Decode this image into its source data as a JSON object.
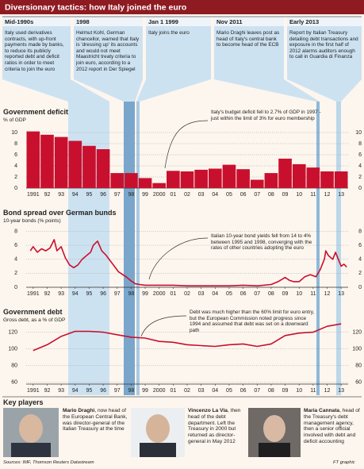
{
  "header": {
    "title": "Diversionary tactics: how Italy joined the euro"
  },
  "timeline": [
    {
      "date": "Mid-1990s",
      "text": "Italy used derivatives contracts, with up-front payments made by banks, to reduce its publicly reported debt and deficit ratios in order to meet criteria to join the euro"
    },
    {
      "date": "1998",
      "text": "Helmut Kohl, German chancellor, warned that Italy is 'dressing up' its accounts and would not meet Maastricht treaty criteria to join euro, according to a 2012 report in Der Spiegel"
    },
    {
      "date": "Jan 1 1999",
      "text": "Italy joins the euro"
    },
    {
      "date": "Nov 2011",
      "text": "Mario Draghi leaves post as head of Italy's central bank to become head of the ECB"
    },
    {
      "date": "Early 2013",
      "text": "Report by Italian Treasury detailing debt transactions and exposure in the first half of 2012 alarms auditors enough to call in Guardia di Finanza"
    }
  ],
  "chart_data": [
    {
      "type": "bar",
      "title": "Government deficit",
      "subtitle": "% of GDP",
      "annotation": "Italy's budget deficit fell to 2.7% of GDP in 1997 - just within the limit of 3% for euro membership",
      "categories": [
        "1991",
        "92",
        "93",
        "94",
        "95",
        "96",
        "97",
        "98",
        "99",
        "2000",
        "01",
        "02",
        "03",
        "04",
        "05",
        "06",
        "07",
        "08",
        "09",
        "10",
        "11",
        "12",
        "13"
      ],
      "values": [
        10.2,
        9.6,
        9.2,
        8.5,
        7.6,
        7.0,
        2.7,
        2.7,
        1.8,
        0.9,
        3.1,
        3.0,
        3.3,
        3.5,
        4.2,
        3.4,
        1.5,
        2.7,
        5.3,
        4.3,
        3.7,
        3.0,
        3.0
      ],
      "color": "#c8102e",
      "ylim": [
        0,
        11
      ],
      "yticks": [
        0,
        2,
        4,
        6,
        8,
        10
      ],
      "grid": true
    },
    {
      "type": "line",
      "title": "Bond spread over German bunds",
      "subtitle": "10-year bonds (% points)",
      "annotation": "Italian 10-year bond yields fell from 14 to 4% between 1995 and 1998, converging with the rates of other countries adopting the euro",
      "x": [
        1990.8,
        1991.0,
        1991.3,
        1991.6,
        1991.9,
        1992.2,
        1992.5,
        1992.7,
        1993.0,
        1993.3,
        1993.6,
        1993.9,
        1994.2,
        1994.5,
        1994.8,
        1995.1,
        1995.3,
        1995.6,
        1995.9,
        1996.2,
        1996.5,
        1996.8,
        1997.1,
        1997.4,
        1997.7,
        1998.0,
        1998.3,
        1998.6,
        1999.0,
        2000,
        2001,
        2002,
        2003,
        2004,
        2005,
        2006,
        2007,
        2008,
        2008.5,
        2009.0,
        2009.3,
        2009.6,
        2010.0,
        2010.4,
        2010.8,
        2011.2,
        2011.5,
        2011.8,
        2011.9,
        2012.1,
        2012.4,
        2012.6,
        2012.8,
        2013.0,
        2013.2,
        2013.4
      ],
      "values": [
        5.2,
        5.8,
        5.0,
        5.5,
        5.2,
        5.6,
        6.8,
        5.2,
        5.8,
        4.2,
        3.2,
        2.8,
        3.2,
        4.0,
        4.5,
        5.0,
        6.0,
        6.6,
        5.2,
        4.6,
        3.8,
        3.0,
        2.2,
        1.8,
        1.4,
        0.9,
        0.5,
        0.4,
        0.3,
        0.3,
        0.3,
        0.2,
        0.2,
        0.2,
        0.2,
        0.3,
        0.2,
        0.4,
        0.8,
        1.4,
        1.0,
        0.8,
        0.8,
        1.5,
        1.8,
        1.5,
        2.5,
        4.0,
        5.2,
        4.5,
        4.0,
        5.0,
        4.0,
        3.0,
        3.3,
        2.9
      ],
      "color": "#c8102e",
      "xlim": [
        1990.5,
        2013.5
      ],
      "xticks": [
        1991,
        {
          "value": 1992,
          "label": "92"
        },
        {
          "value": 1993,
          "label": "93"
        },
        {
          "value": 1994,
          "label": "94"
        },
        {
          "value": 1995,
          "label": "95"
        },
        {
          "value": 1996,
          "label": "96"
        },
        {
          "value": 1997,
          "label": "97"
        },
        {
          "value": 1998,
          "label": "98"
        },
        {
          "value": 1999,
          "label": "99"
        },
        2000,
        {
          "value": 2001,
          "label": "01"
        },
        {
          "value": 2002,
          "label": "02"
        },
        {
          "value": 2003,
          "label": "03"
        },
        {
          "value": 2004,
          "label": "04"
        },
        {
          "value": 2005,
          "label": "05"
        },
        {
          "value": 2006,
          "label": "06"
        },
        {
          "value": 2007,
          "label": "07"
        },
        {
          "value": 2008,
          "label": "08"
        },
        {
          "value": 2009,
          "label": "09"
        },
        {
          "value": 2010,
          "label": "10"
        },
        {
          "value": 2011,
          "label": "11"
        },
        {
          "value": 2012,
          "label": "12"
        },
        {
          "value": 2013,
          "label": "13"
        }
      ],
      "ylim": [
        0,
        8.5
      ],
      "yticks": [
        0,
        2,
        4,
        6,
        8
      ],
      "grid": true
    },
    {
      "type": "line",
      "title": "Government debt",
      "subtitle": "Gross debt, as a % of GDP",
      "annotation": "Debt was much higher than the 60% limit for euro entry, but the European Commission noted progress since 1994 and assumed that debt was set on a downward path",
      "x": [
        1991,
        1992,
        1993,
        1994,
        1995,
        1996,
        1997,
        1998,
        1999,
        2000,
        2001,
        2002,
        2003,
        2004,
        2005,
        2006,
        2007,
        2008,
        2009,
        2010,
        2011,
        2012,
        2013
      ],
      "values": [
        98,
        105,
        115,
        121,
        121,
        120,
        117,
        114,
        113,
        109,
        108,
        105,
        104,
        103,
        105,
        106,
        103,
        106,
        116,
        119,
        120,
        127,
        130
      ],
      "color": "#c8102e",
      "xlim": [
        1990.5,
        2013.5
      ],
      "xticks": [
        1991,
        {
          "value": 1992,
          "label": "92"
        },
        {
          "value": 1993,
          "label": "93"
        },
        {
          "value": 1994,
          "label": "94"
        },
        {
          "value": 1995,
          "label": "95"
        },
        {
          "value": 1996,
          "label": "96"
        },
        {
          "value": 1997,
          "label": "97"
        },
        {
          "value": 1998,
          "label": "98"
        },
        {
          "value": 1999,
          "label": "99"
        },
        2000,
        {
          "value": 2001,
          "label": "01"
        },
        {
          "value": 2002,
          "label": "02"
        },
        {
          "value": 2003,
          "label": "03"
        },
        {
          "value": 2004,
          "label": "04"
        },
        {
          "value": 2005,
          "label": "05"
        },
        {
          "value": 2006,
          "label": "06"
        },
        {
          "value": 2007,
          "label": "07"
        },
        {
          "value": 2008,
          "label": "08"
        },
        {
          "value": 2009,
          "label": "09"
        },
        {
          "value": 2010,
          "label": "10"
        },
        {
          "value": 2011,
          "label": "11"
        },
        {
          "value": 2012,
          "label": "12"
        },
        {
          "value": 2013,
          "label": "13"
        }
      ],
      "ylim": [
        58,
        131
      ],
      "yticks": [
        60,
        80,
        100,
        120
      ],
      "grid": true
    }
  ],
  "key_players": {
    "title": "Key players",
    "people": [
      {
        "name": "Mario Draghi",
        "text": ", now head of the European Central Bank, was director-general of the Italian Treasury at the time"
      },
      {
        "name": "Vincenzo La Via",
        "text": ", then head of the debt department. Left the Treasury in 2000 but returned as director-general in May 2012"
      },
      {
        "name": "Maria Cannata",
        "text": ", head of the Treasury's debt management agency, then a senior official involved with debt and deficit accounting"
      }
    ]
  },
  "footer": {
    "sources": "Sources: IMF, Thomson Reuters Datastream",
    "credit": "FT graphic"
  }
}
